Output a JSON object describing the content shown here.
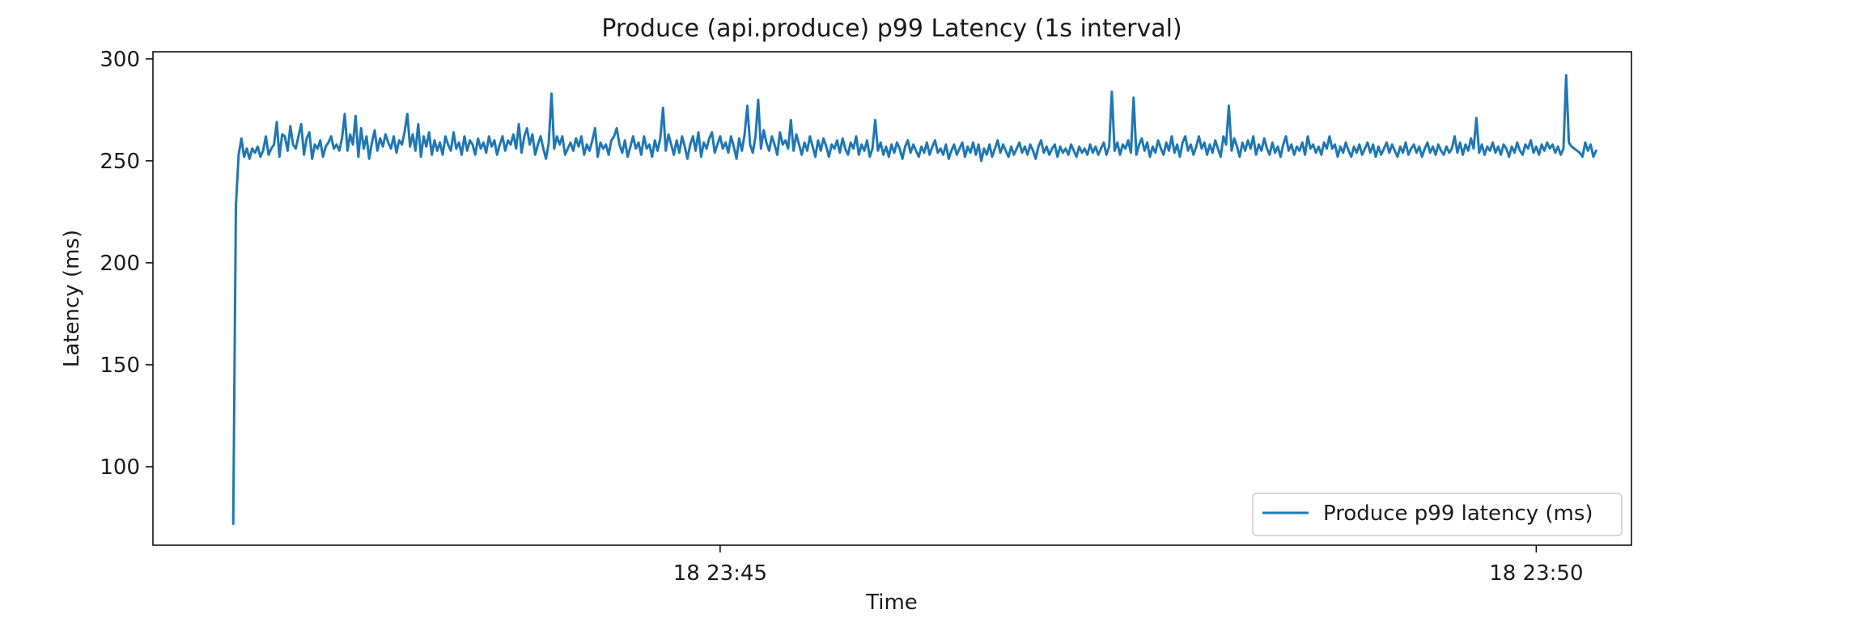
{
  "chart_data": {
    "type": "line",
    "title": "Produce (api.produce) p99 Latency (1s interval)",
    "xlabel": "Time",
    "ylabel": "Latency (ms)",
    "x_range_seconds_after_2343": [
      -88.5,
      455
    ],
    "ylim": [
      61.5,
      303.5
    ],
    "y_ticks": [
      100,
      150,
      200,
      250,
      300
    ],
    "x_ticks": [
      {
        "label": "18 23:45",
        "t": 120
      },
      {
        "label": "18 23:50",
        "t": 420
      }
    ],
    "grid": false,
    "legend_position": "lower right",
    "series": [
      {
        "name": "Produce p99 latency (ms)",
        "color": "#1f77b4",
        "sample_interval_s": 1,
        "start_t": -59,
        "values": [
          72,
          228,
          253,
          261,
          252,
          256,
          251,
          256,
          254,
          257,
          252,
          255,
          262,
          253,
          256,
          258,
          269,
          252,
          263,
          262,
          255,
          267,
          258,
          256,
          262,
          268,
          253,
          261,
          264,
          251,
          258,
          256,
          260,
          252,
          257,
          259,
          262,
          256,
          258,
          255,
          261,
          273,
          255,
          263,
          258,
          272,
          252,
          266,
          256,
          262,
          251,
          259,
          265,
          255,
          261,
          257,
          263,
          259,
          256,
          262,
          254,
          260,
          258,
          264,
          273,
          257,
          263,
          255,
          268,
          252,
          262,
          257,
          264,
          253,
          260,
          255,
          259,
          253,
          262,
          258,
          255,
          264,
          256,
          259,
          253,
          262,
          255,
          260,
          258,
          253,
          261,
          256,
          259,
          254,
          262,
          257,
          260,
          253,
          258,
          262,
          255,
          260,
          258,
          263,
          256,
          268,
          254,
          262,
          266,
          258,
          263,
          253,
          258,
          262,
          256,
          251,
          259,
          283,
          256,
          262,
          258,
          262,
          253,
          256,
          259,
          255,
          261,
          257,
          262,
          253,
          258,
          255,
          260,
          266,
          252,
          259,
          256,
          258,
          253,
          260,
          262,
          266,
          258,
          254,
          260,
          252,
          257,
          262,
          256,
          259,
          253,
          262,
          256,
          258,
          252,
          260,
          255,
          261,
          276,
          255,
          263,
          258,
          253,
          260,
          254,
          262,
          257,
          251,
          258,
          262,
          255,
          264,
          252,
          259,
          256,
          261,
          264,
          254,
          258,
          262,
          256,
          259,
          254,
          262,
          257,
          251,
          261,
          255,
          263,
          277,
          258,
          254,
          262,
          280,
          256,
          265,
          259,
          255,
          262,
          258,
          253,
          264,
          258,
          260,
          256,
          270,
          255,
          263,
          258,
          253,
          259,
          255,
          262,
          257,
          252,
          260,
          255,
          261,
          257,
          252,
          258,
          256,
          260,
          254,
          261,
          256,
          253,
          259,
          256,
          262,
          253,
          258,
          255,
          260,
          252,
          256,
          270,
          255,
          259,
          253,
          257,
          252,
          258,
          254,
          259,
          256,
          251,
          257,
          260,
          254,
          258,
          255,
          252,
          257,
          254,
          259,
          253,
          257,
          260,
          254,
          256,
          253,
          258,
          251,
          255,
          258,
          253,
          256,
          259,
          252,
          257,
          254,
          259,
          253,
          258,
          250,
          256,
          253,
          258,
          252,
          256,
          260,
          254,
          258,
          255,
          252,
          257,
          253,
          256,
          259,
          254,
          257,
          253,
          258,
          255,
          251,
          257,
          260,
          254,
          257,
          253,
          256,
          258,
          252,
          257,
          254,
          256,
          253,
          258,
          255,
          252,
          257,
          254,
          256,
          253,
          258,
          254,
          257,
          253,
          256,
          259,
          253,
          257,
          284,
          255,
          259,
          253,
          258,
          256,
          260,
          254,
          281,
          253,
          258,
          261,
          255,
          259,
          252,
          257,
          254,
          260,
          256,
          253,
          259,
          255,
          262,
          254,
          258,
          252,
          259,
          262,
          255,
          258,
          253,
          257,
          262,
          256,
          259,
          253,
          258,
          254,
          260,
          256,
          252,
          262,
          258,
          277,
          255,
          261,
          257,
          252,
          259,
          255,
          260,
          256,
          262,
          253,
          258,
          255,
          261,
          256,
          253,
          259,
          254,
          257,
          252,
          258,
          262,
          255,
          258,
          253,
          257,
          255,
          259,
          253,
          262,
          256,
          258,
          254,
          257,
          253,
          259,
          256,
          262,
          256,
          258,
          252,
          257,
          254,
          259,
          255,
          252,
          257,
          254,
          258,
          253,
          256,
          259,
          254,
          258,
          252,
          257,
          253,
          256,
          259,
          254,
          258,
          255,
          252,
          257,
          254,
          259,
          253,
          256,
          258,
          254,
          257,
          252,
          256,
          259,
          254,
          257,
          253,
          258,
          255,
          253,
          257,
          254,
          256,
          262,
          254,
          259,
          253,
          258,
          255,
          261,
          256,
          271,
          254,
          258,
          253,
          257,
          255,
          259,
          254,
          257,
          253,
          258,
          256,
          252,
          257,
          254,
          259,
          255,
          253,
          258,
          256,
          260,
          254,
          257,
          253,
          258,
          255,
          259,
          256,
          258,
          254,
          257,
          253,
          256,
          292,
          259,
          257,
          256,
          255,
          254,
          252,
          259,
          255,
          258,
          252,
          255
        ]
      }
    ]
  }
}
